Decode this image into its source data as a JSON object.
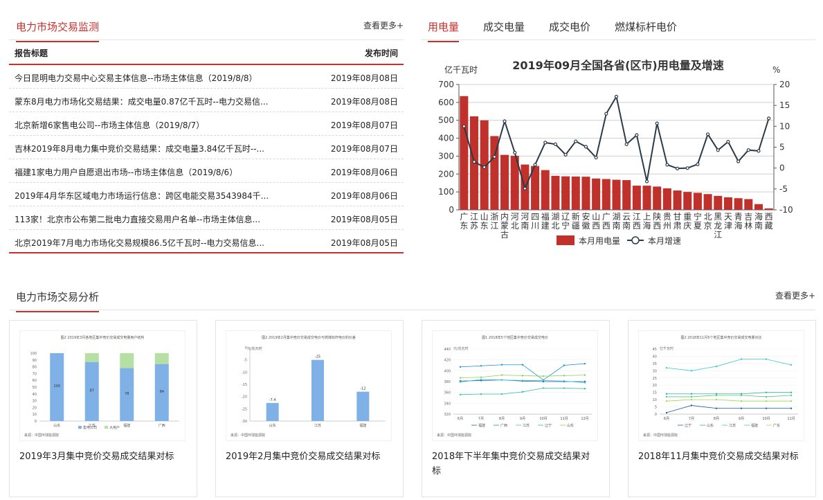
{
  "monitor": {
    "title": "电力市场交易监测",
    "more": "查看更多+",
    "col_title": "报告标题",
    "col_date": "发布时间",
    "rows": [
      {
        "title": "今日昆明电力交易中心交易主体信息--市场主体信息（2019/8/8）",
        "date": "2019年08月08日"
      },
      {
        "title": "蒙东8月电力市场化交易结果：成交电量0.87亿千瓦时--电力交易信...",
        "date": "2019年08月08日"
      },
      {
        "title": "北京新增6家售电公司--市场主体信息（2019/8/7）",
        "date": "2019年08月07日"
      },
      {
        "title": "吉林2019年8月电力集中竞价交易结果：成交电量3.84亿千瓦时--...",
        "date": "2019年08月07日"
      },
      {
        "title": "福建1家电力用户自愿退出市场--市场主体信息（2019/8/6）",
        "date": "2019年08月06日"
      },
      {
        "title": "2019年4月华东区域电力市场运行信息：跨区电能交易3543984千...",
        "date": "2019年08月06日"
      },
      {
        "title": "113家！北京市公布第二批电力直接交易用户名单--市场主体信息...",
        "date": "2019年08月05日"
      },
      {
        "title": "北京2019年7月电力市场化交易规模86.5亿千瓦时--电力交易信息...",
        "date": "2019年08月05日"
      }
    ]
  },
  "tabs": [
    {
      "label": "用电量",
      "active": true
    },
    {
      "label": "成交电量",
      "active": false
    },
    {
      "label": "成交电价",
      "active": false
    },
    {
      "label": "燃煤标杆电价",
      "active": false
    }
  ],
  "colors": {
    "accent": "#c9302c",
    "bar": "#c0312c",
    "line": "#2b3a47"
  },
  "chart_data": {
    "type": "bar",
    "title": "2019年09月全国各省(区市)用电量及增速",
    "ylabel": "亿千瓦时",
    "y2label": "%",
    "ylim": [
      0,
      700
    ],
    "y2lim": [
      -10,
      20
    ],
    "yticks": [
      "0",
      "100",
      "200",
      "300",
      "400",
      "500",
      "600",
      "700"
    ],
    "y2ticks": [
      "-10",
      "-5",
      "0",
      "5",
      "10",
      "15",
      "20"
    ],
    "categories": [
      "广东",
      "江苏",
      "山东",
      "浙江",
      "内蒙古",
      "河北",
      "河南",
      "四川",
      "福建",
      "湖北",
      "辽宁",
      "新疆",
      "安徽",
      "山西",
      "广西",
      "湖南",
      "云南",
      "江西",
      "上海",
      "陕西",
      "贵州",
      "甘肃",
      "重庆",
      "宁夏",
      "北京",
      "黑龙江",
      "天津",
      "青海",
      "吉林",
      "海南",
      "西藏"
    ],
    "series": [
      {
        "name": "本月用电量",
        "kind": "bar",
        "axis": "left",
        "values": [
          635,
          522,
          500,
          412,
          307,
          302,
          253,
          245,
          222,
          190,
          187,
          186,
          185,
          175,
          172,
          168,
          166,
          135,
          135,
          130,
          120,
          108,
          100,
          95,
          88,
          78,
          70,
          65,
          60,
          32,
          8
        ]
      },
      {
        "name": "本月增速",
        "kind": "line",
        "axis": "right",
        "values": [
          10.0,
          1.5,
          0.2,
          2.7,
          11.2,
          3.7,
          -4.9,
          0.8,
          6.1,
          5.7,
          3.2,
          6.4,
          5.1,
          2.5,
          13.0,
          17.1,
          5.7,
          7.9,
          -3.2,
          10.7,
          0.8,
          -0.1,
          0.0,
          0.9,
          8.1,
          4.3,
          6.3,
          1.6,
          4.3,
          4.1,
          11.9
        ]
      }
    ],
    "legend_position": "bottom"
  },
  "analysis": {
    "title": "电力市场交易分析",
    "more": "查看更多+",
    "cards": [
      {
        "title": "2019年3月集中竞价交易成交结果对标",
        "thumb": {
          "caption": "图2 2019年3月各地区集中竞价交易成交电量用户结构",
          "source": "来源：中国环球能源院",
          "categories": [
            "山东",
            "江苏",
            "福建",
            "广西"
          ],
          "values": [
            100,
            87,
            78,
            84
          ],
          "value_labels": [
            "100",
            "87",
            "78",
            "84"
          ],
          "legend": [
            "售电公司",
            "大用户"
          ]
        }
      },
      {
        "title": "2019年2月集中竞价交易成交结果对标",
        "thumb": {
          "caption": "图2 2019年2月集中竞价交易成交电价与燃煤标杆电价的价差",
          "unit": "元/兆瓦时",
          "source": "来源：中国环球能源院",
          "categories": [
            "山东",
            "江苏",
            "福建"
          ],
          "values": [
            -7.4,
            -25,
            -12
          ],
          "value_labels": [
            "-7.4",
            "-25",
            "-12"
          ],
          "yticks": [
            "0",
            "-5",
            "-10",
            "-15",
            "-20",
            "-25",
            "-30"
          ]
        }
      },
      {
        "title": "2018年下半年集中竞价交易成交结果对标",
        "thumb": {
          "caption": "图1 2018年5个地区集中竞价交易成交电价",
          "unit": "元/兆瓦时",
          "source": "来源：中国环球能源院",
          "categories": [
            "6月",
            "7月",
            "8月",
            "9月",
            "10月",
            "11月",
            "12月"
          ],
          "yticks": [
            "320",
            "340",
            "360",
            "380",
            "400",
            "420",
            "440"
          ],
          "series": [
            {
              "name": "福建",
              "values": [
                381,
                382,
                383,
                381,
                380,
                380,
                380
              ]
            },
            {
              "name": "广西",
              "values": [
                407,
                409,
                411,
                411,
                383,
                410,
                413
              ]
            },
            {
              "name": "江苏",
              "values": [
                379,
                384,
                383,
                382,
                382,
                381,
                378
              ]
            },
            {
              "name": "辽宁",
              "values": [
                356,
                357,
                357,
                361,
                368,
                368,
                367
              ]
            },
            {
              "name": "山东",
              "values": [
                387,
                388,
                392,
                391,
                390,
                391,
                392
              ]
            }
          ]
        }
      },
      {
        "title": "2018年11月集中竞价交易成交结果对标",
        "thumb": {
          "caption": "图2 2018年11月5个地区集中竞价交易成交电量对比",
          "unit": "亿千瓦时",
          "source": "来源：中国环球能源院",
          "categories": [
            "6月",
            "7月",
            "8月",
            "9月",
            "10月",
            "11月"
          ],
          "yticks": [
            "0",
            "5",
            "10",
            "15",
            "20",
            "25",
            "30",
            "35",
            "40",
            "45"
          ],
          "series": [
            {
              "name": "辽宁",
              "values": [
                1,
                6,
                4,
                4,
                4,
                4
              ]
            },
            {
              "name": "山东",
              "values": [
                14,
                14,
                14,
                14,
                15,
                15
              ]
            },
            {
              "name": "江苏",
              "values": [
                32,
                30,
                33,
                38,
                38,
                34
              ]
            },
            {
              "name": "福建",
              "values": [
                12,
                12,
                13,
                13,
                12,
                13
              ]
            },
            {
              "name": "广东",
              "values": [
                9,
                10,
                10,
                9,
                9,
                9
              ]
            }
          ]
        }
      }
    ]
  }
}
